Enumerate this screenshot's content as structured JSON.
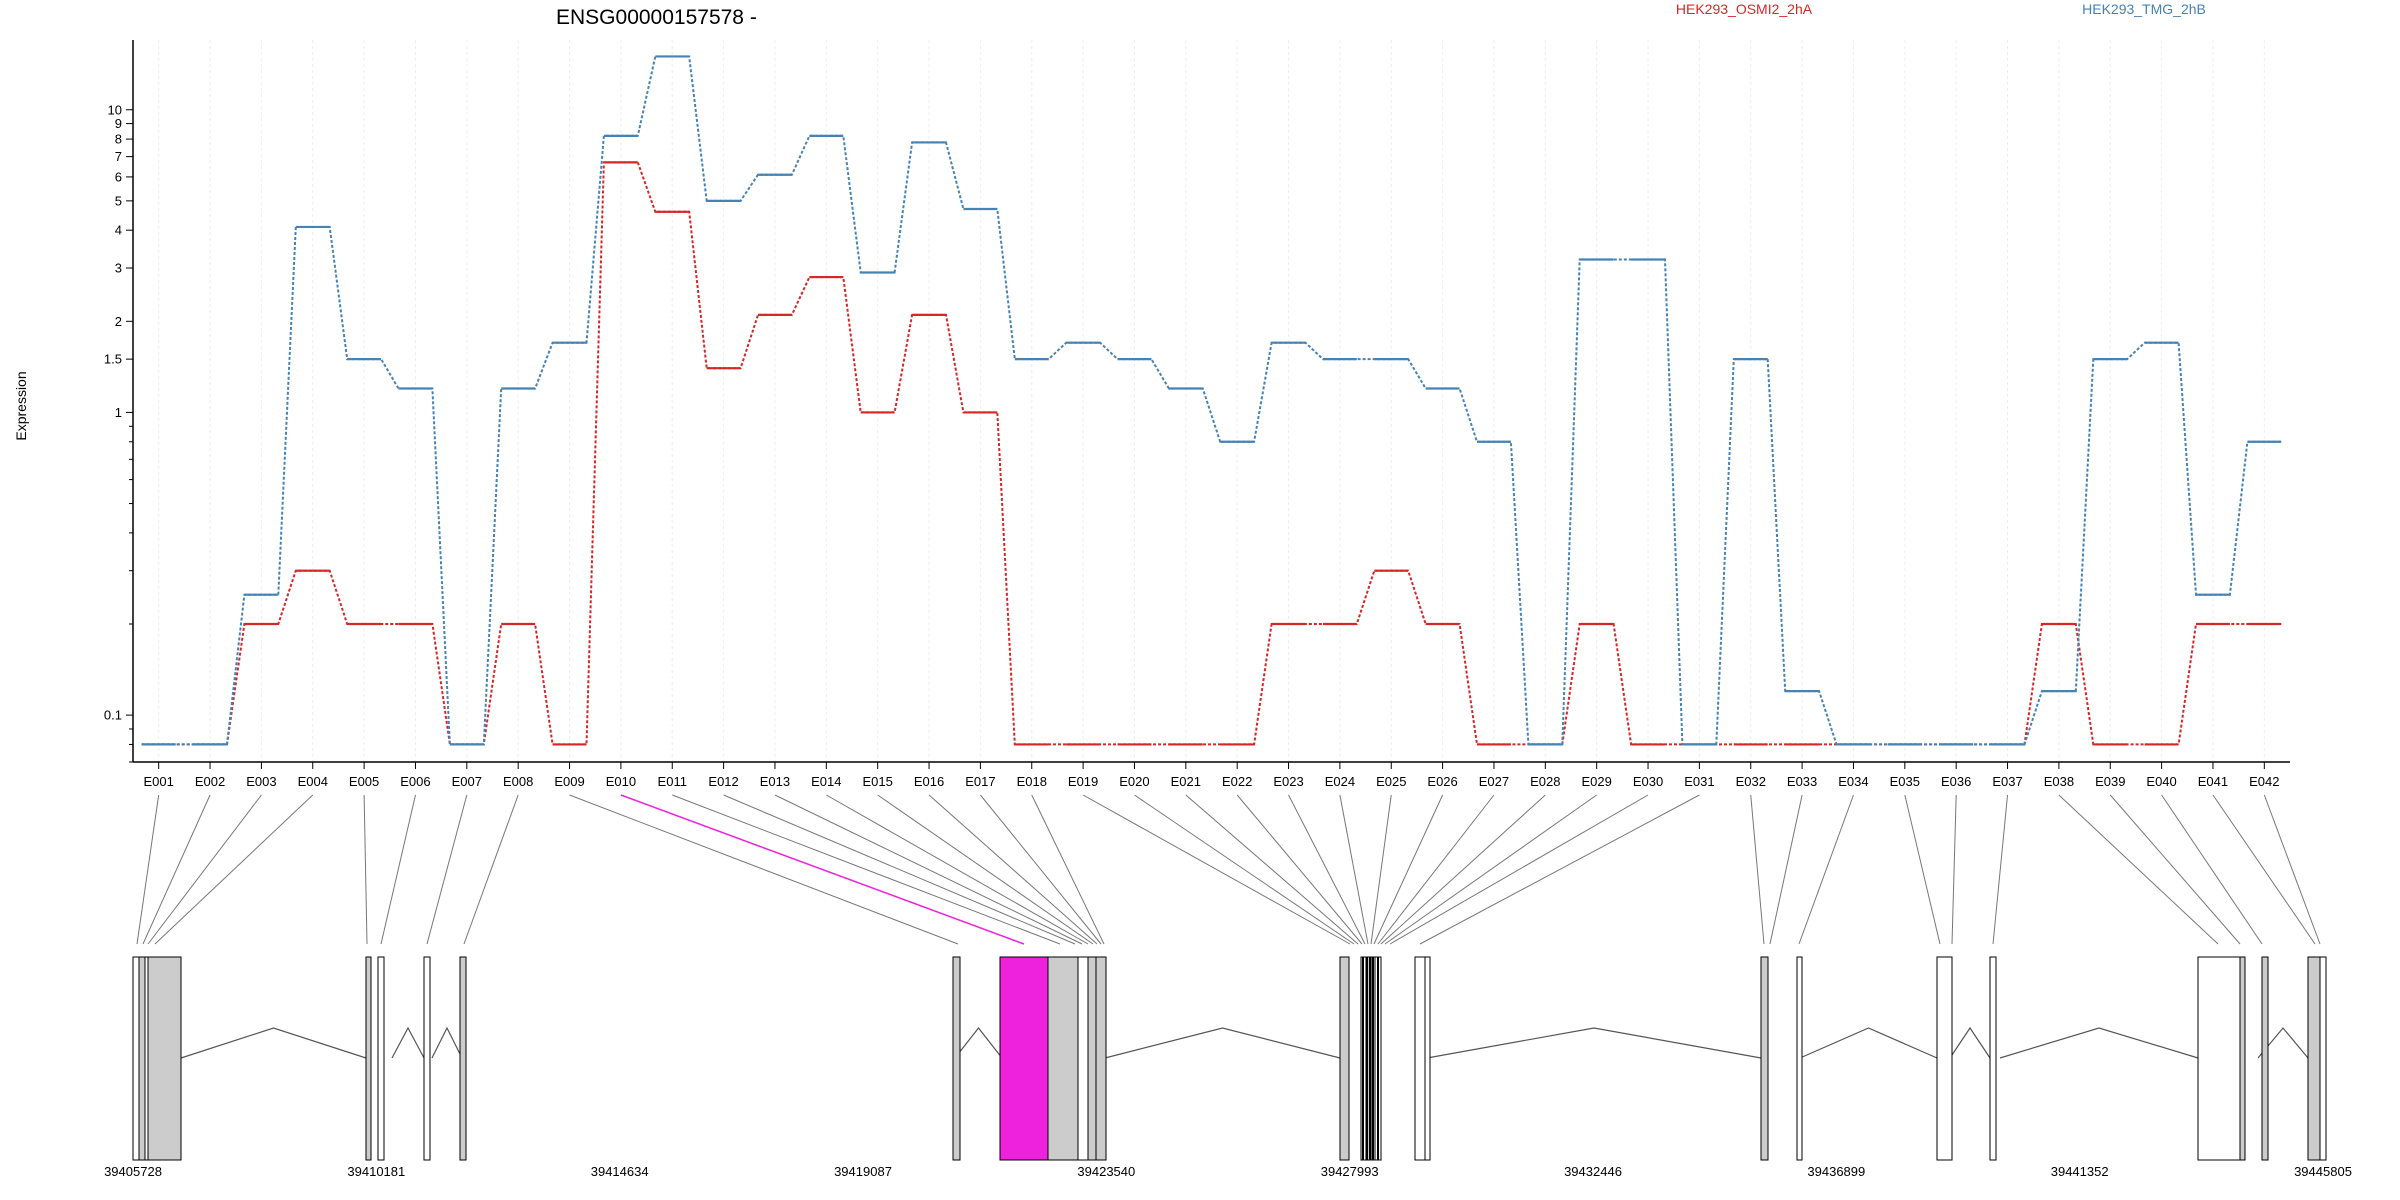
{
  "chart_data": {
    "type": "line",
    "title": "ENSG00000157578 -",
    "ylabel": "Expression",
    "y_scale": "log",
    "ylim": [
      0.07,
      17
    ],
    "y_ticks": [
      0.1,
      1,
      1.5,
      2,
      3,
      4,
      5,
      6,
      7,
      8,
      9,
      10
    ],
    "y_tick_labels": [
      "0.1",
      "1",
      "1.5",
      "2",
      "3",
      "4",
      "5",
      "6",
      "7",
      "8",
      "9",
      "10"
    ],
    "categories": [
      "E001",
      "E002",
      "E003",
      "E004",
      "E005",
      "E006",
      "E007",
      "E008",
      "E009",
      "E010",
      "E011",
      "E012",
      "E013",
      "E014",
      "E015",
      "E016",
      "E017",
      "E018",
      "E019",
      "E020",
      "E021",
      "E022",
      "E023",
      "E024",
      "E025",
      "E026",
      "E027",
      "E028",
      "E029",
      "E030",
      "E031",
      "E032",
      "E033",
      "E034",
      "E035",
      "E036",
      "E037",
      "E038",
      "E039",
      "E040",
      "E041",
      "E042"
    ],
    "series": [
      {
        "name": "HEK293_OSMI2_2hA",
        "color": "#d62728",
        "values": [
          0.08,
          0.08,
          0.2,
          0.3,
          0.2,
          0.2,
          0.08,
          0.2,
          0.08,
          6.7,
          4.6,
          1.4,
          2.1,
          2.8,
          1.0,
          2.1,
          1.0,
          0.08,
          0.08,
          0.08,
          0.08,
          0.08,
          0.2,
          0.2,
          0.3,
          0.2,
          0.08,
          0.08,
          0.2,
          0.08,
          0.08,
          0.08,
          0.08,
          0.08,
          0.08,
          0.08,
          0.08,
          0.2,
          0.08,
          0.08,
          0.2,
          0.2
        ]
      },
      {
        "name": "HEK293_TMG_2hB",
        "color": "#4682b4",
        "values": [
          0.08,
          0.08,
          0.25,
          4.1,
          1.5,
          1.2,
          0.08,
          1.2,
          1.7,
          8.2,
          15.0,
          5.0,
          6.1,
          8.2,
          2.9,
          7.8,
          4.7,
          1.5,
          1.7,
          1.5,
          1.2,
          0.8,
          1.7,
          1.5,
          1.5,
          1.2,
          0.8,
          0.08,
          3.2,
          3.2,
          0.08,
          1.5,
          0.12,
          0.08,
          0.08,
          0.08,
          0.08,
          0.12,
          1.5,
          1.7,
          0.25,
          0.8
        ]
      }
    ],
    "gene_model": {
      "x_ticks": [
        39405728,
        39410181,
        39414634,
        39419087,
        39423540,
        39427993,
        39432446,
        39436899,
        39441352,
        39445805
      ],
      "x_range": [
        39405728,
        39445805
      ],
      "highlighted_exon": "E010",
      "highlight_color": "#ee22dd"
    }
  }
}
